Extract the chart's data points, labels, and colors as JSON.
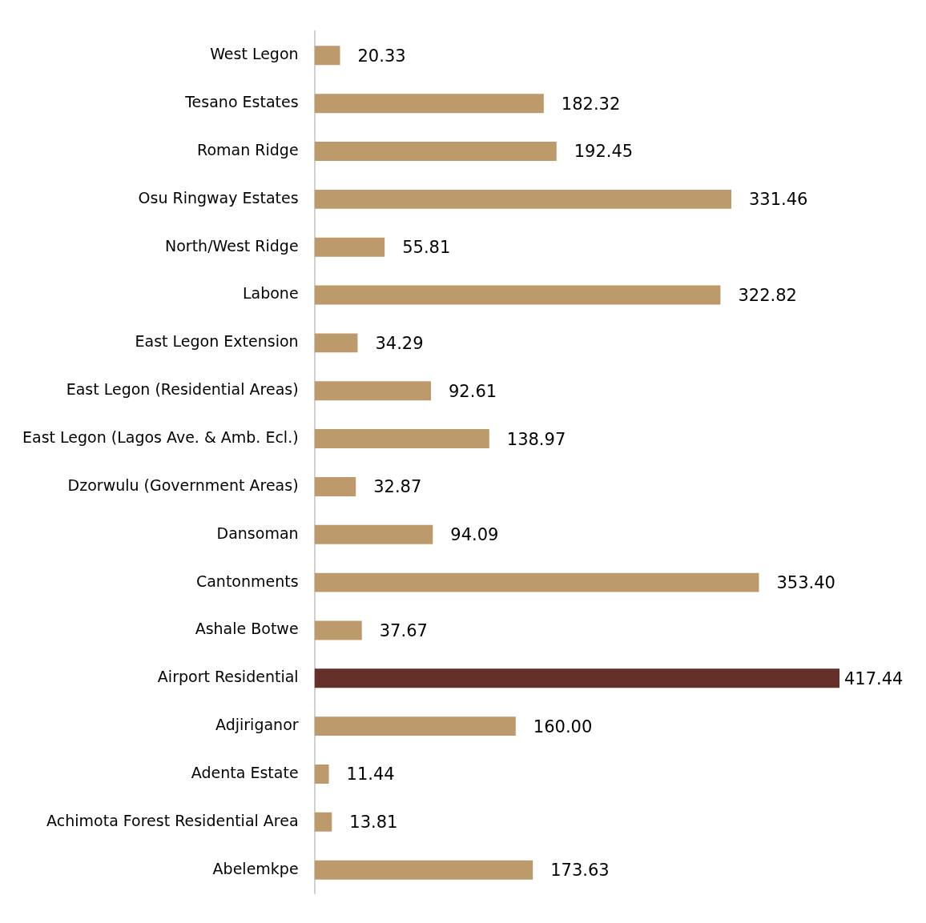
{
  "chart_data": {
    "type": "bar",
    "orientation": "horizontal",
    "categories": [
      "West Legon",
      "Tesano Estates",
      "Roman Ridge",
      "Osu Ringway Estates",
      "North/West Ridge",
      "Labone",
      "East Legon Extension",
      "East Legon (Residential Areas)",
      "East Legon (Lagos Ave. & Amb. Ecl.)",
      "Dzorwulu (Government Areas)",
      "Dansoman",
      "Cantonments",
      "Ashale Botwe",
      "Airport Residential",
      "Adjiriganor",
      "Adenta Estate",
      "Achimota Forest Residential Area",
      "Abelemkpe"
    ],
    "values": [
      20.33,
      182.32,
      192.45,
      331.46,
      55.81,
      322.82,
      34.29,
      92.61,
      138.97,
      32.87,
      94.09,
      353.4,
      37.67,
      417.44,
      160.0,
      11.44,
      13.81,
      173.63
    ],
    "value_labels": [
      "20.33",
      "182.32",
      "192.45",
      "331.46",
      "55.81",
      "322.82",
      "34.29",
      "92.61",
      "138.97",
      "32.87",
      "94.09",
      "353.40",
      "37.67",
      "417.44",
      "160.00",
      "11.44",
      "13.81",
      "173.63"
    ],
    "colors": [
      "#bd9a6c",
      "#bd9a6c",
      "#bd9a6c",
      "#bd9a6c",
      "#bd9a6c",
      "#bd9a6c",
      "#bd9a6c",
      "#bd9a6c",
      "#bd9a6c",
      "#bd9a6c",
      "#bd9a6c",
      "#bd9a6c",
      "#bd9a6c",
      "#66302a",
      "#bd9a6c",
      "#bd9a6c",
      "#bd9a6c",
      "#bd9a6c"
    ],
    "legend": false
  }
}
